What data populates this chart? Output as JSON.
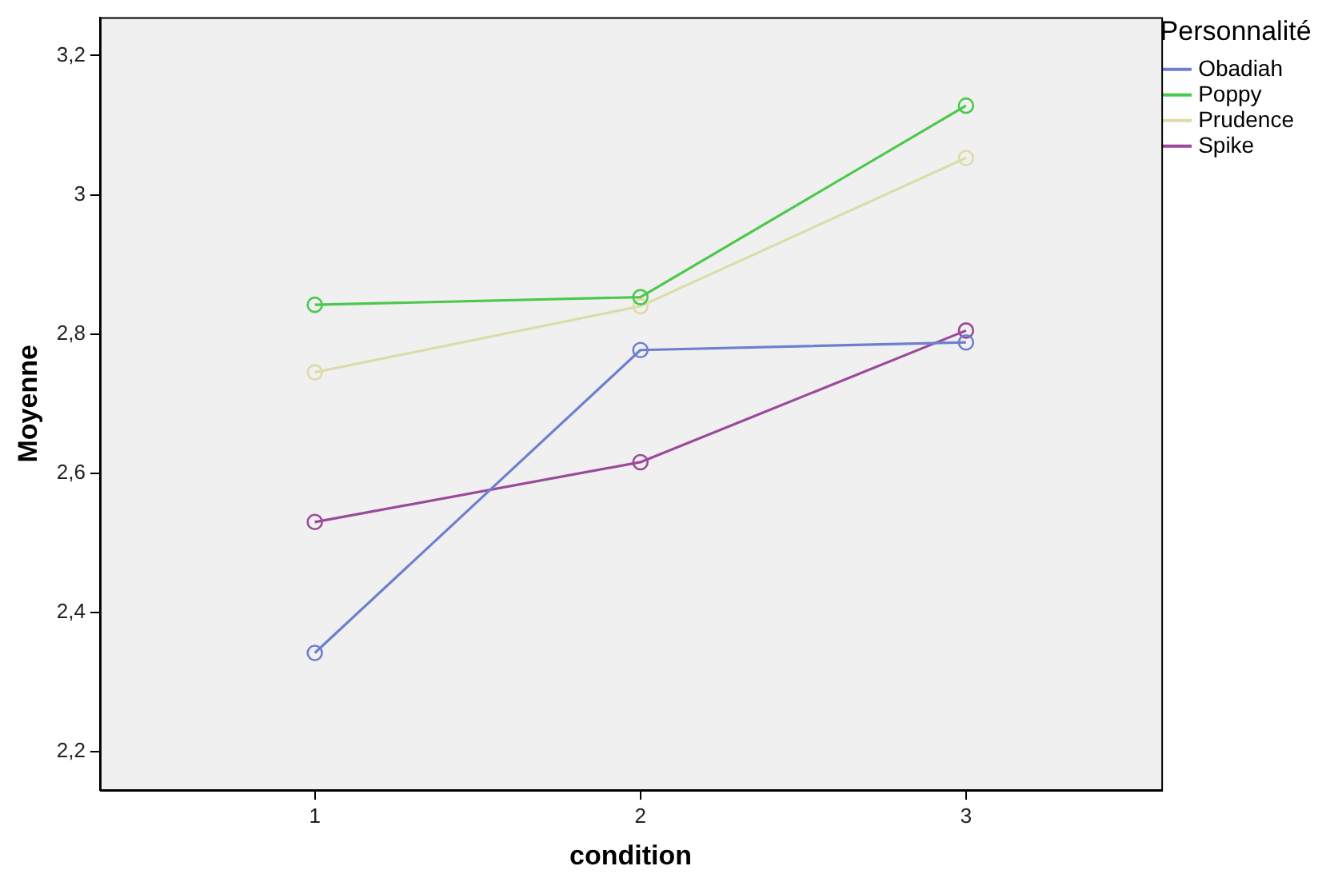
{
  "chart_data": {
    "type": "line",
    "xlabel": "condition",
    "ylabel": "Moyenne",
    "legend_title": "Personnalité",
    "legend": "top right",
    "marker": "circle",
    "grid": false,
    "x": [
      1,
      2,
      3
    ],
    "xlim": [
      0.34,
      3.6
    ],
    "xticks": [
      1,
      2,
      3
    ],
    "ylim": [
      2.145,
      3.255
    ],
    "yticks": [
      {
        "value": 2.2,
        "label": "2,2"
      },
      {
        "value": 2.4,
        "label": "2,4"
      },
      {
        "value": 2.6,
        "label": "2,6"
      },
      {
        "value": 2.8,
        "label": "2,8"
      },
      3,
      {
        "value": 3.2,
        "label": "3,2"
      }
    ],
    "series": [
      {
        "name": "Obadiah",
        "color": "#6f7fcf",
        "values": [
          2.342,
          2.777,
          2.788
        ]
      },
      {
        "name": "Poppy",
        "color": "#4cc84c",
        "values": [
          2.842,
          2.853,
          3.128
        ]
      },
      {
        "name": "Prudence",
        "color": "#dcdcaa",
        "values": [
          2.745,
          2.84,
          3.053
        ]
      },
      {
        "name": "Spike",
        "color": "#9a4a9a",
        "values": [
          2.53,
          2.616,
          2.805
        ]
      }
    ]
  }
}
